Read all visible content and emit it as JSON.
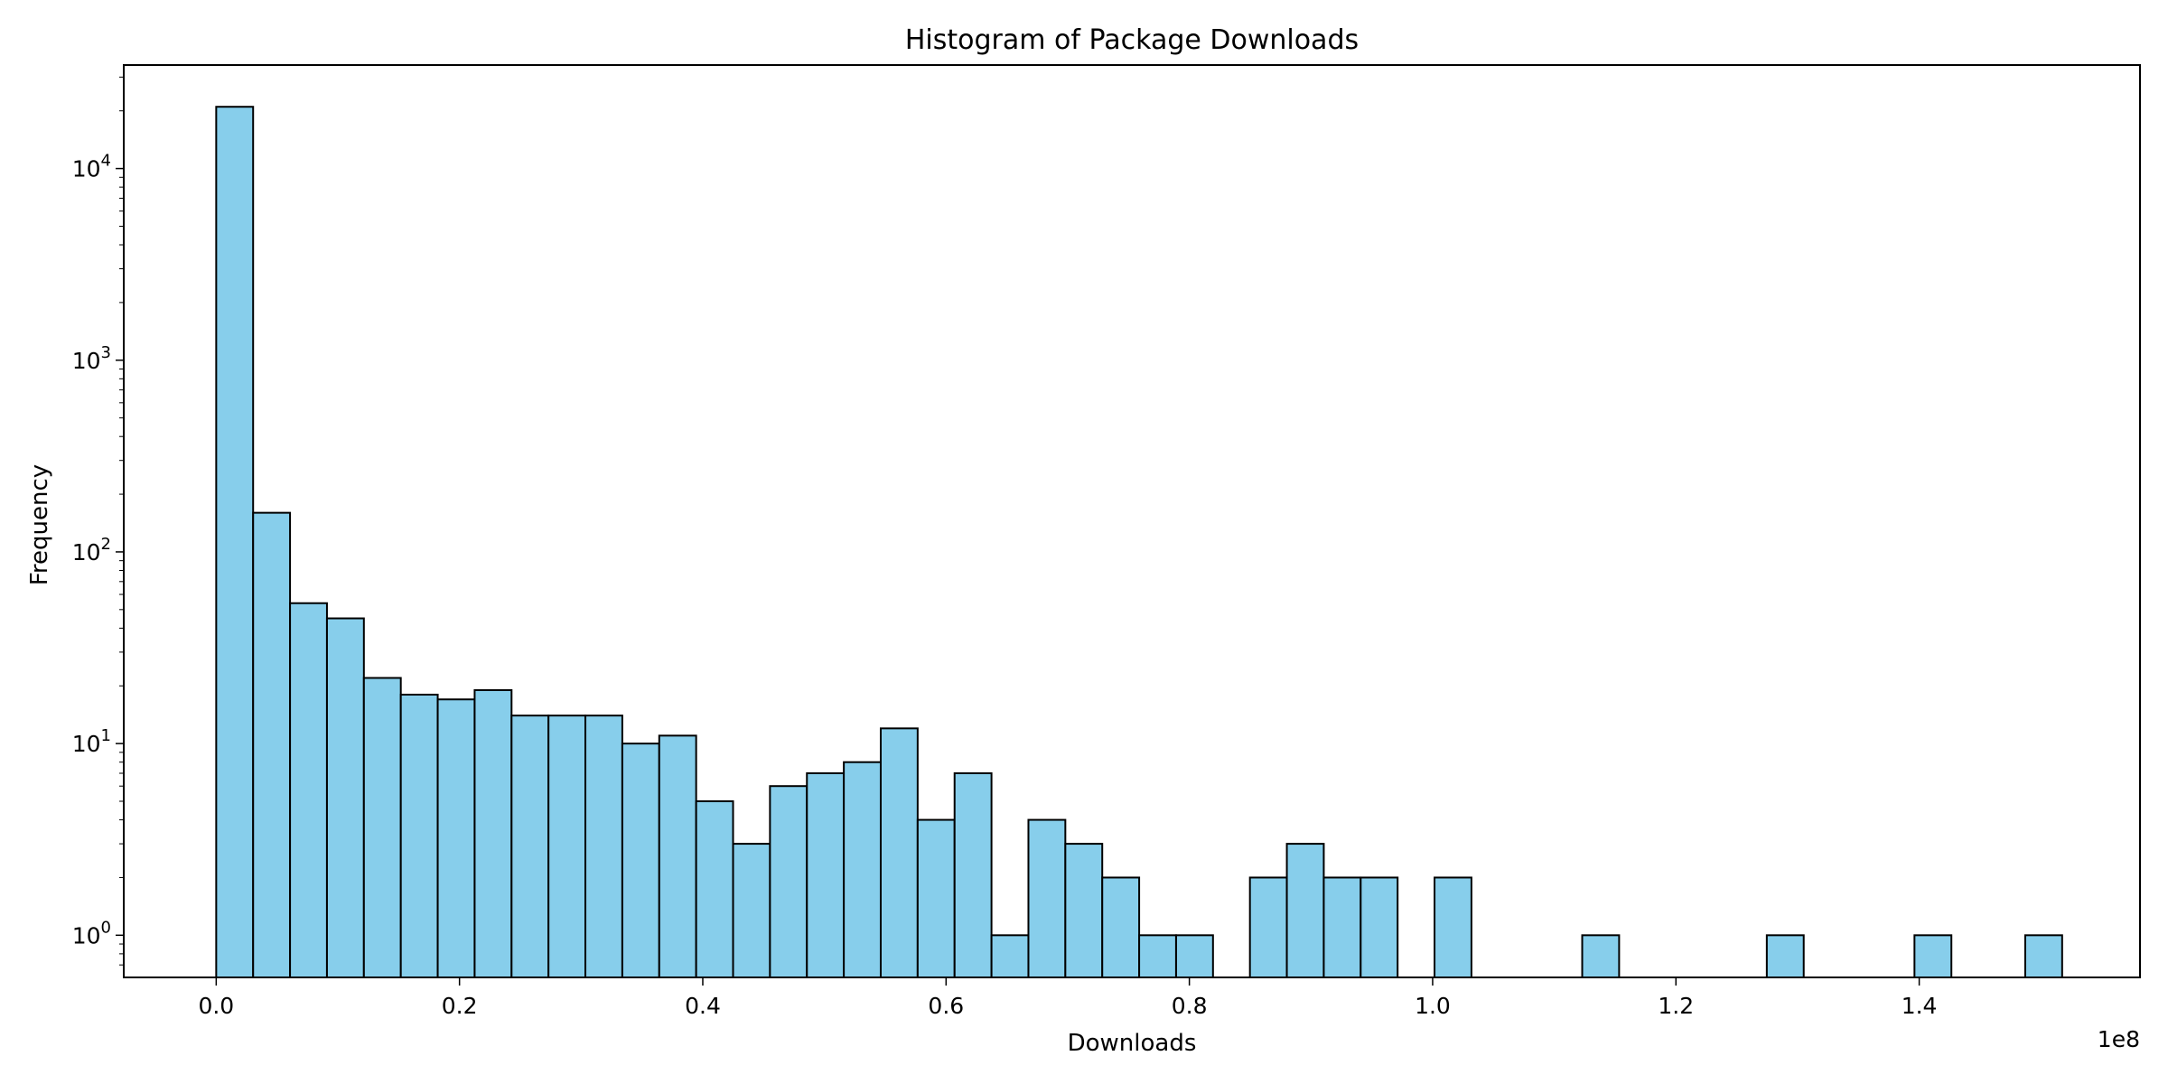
{
  "chart_data": {
    "type": "bar",
    "histogram": true,
    "title": "Histogram of Package Downloads",
    "xlabel": "Downloads",
    "ylabel": "Frequency",
    "x_offset_label": "1e8",
    "y_scale": "log",
    "grid": false,
    "legend": "none",
    "xlim": [
      -0.076,
      1.5815
    ],
    "ylim_log10": [
      -0.22,
      4.54
    ],
    "x_ticks": [
      {
        "value": 0.0,
        "label": "0.0"
      },
      {
        "value": 0.2,
        "label": "0.2"
      },
      {
        "value": 0.4,
        "label": "0.4"
      },
      {
        "value": 0.6,
        "label": "0.6"
      },
      {
        "value": 0.8,
        "label": "0.8"
      },
      {
        "value": 1.0,
        "label": "1.0"
      },
      {
        "value": 1.2,
        "label": "1.2"
      },
      {
        "value": 1.4,
        "label": "1.4"
      }
    ],
    "y_ticks": [
      {
        "exp": 0,
        "base": "10",
        "sup": "0"
      },
      {
        "exp": 1,
        "base": "10",
        "sup": "1"
      },
      {
        "exp": 2,
        "base": "10",
        "sup": "2"
      },
      {
        "exp": 3,
        "base": "10",
        "sup": "3"
      },
      {
        "exp": 4,
        "base": "10",
        "sup": "4"
      }
    ],
    "bins": {
      "start": 0.0,
      "width": 0.03035,
      "count": 50
    },
    "values": [
      21000,
      160,
      54,
      45,
      22,
      18,
      17,
      19,
      14,
      14,
      14,
      10,
      11,
      5,
      3,
      6,
      7,
      8,
      12,
      4,
      7,
      1,
      4,
      3,
      2,
      1,
      1,
      0,
      2,
      3,
      2,
      2,
      0,
      2,
      0,
      0,
      0,
      1,
      0,
      0,
      0,
      0,
      1,
      0,
      0,
      0,
      1,
      0,
      0,
      1
    ],
    "colors": {
      "bar_fill": "#87ceeb",
      "bar_edge": "#000000",
      "axes": "#000000",
      "background": "#ffffff"
    }
  }
}
